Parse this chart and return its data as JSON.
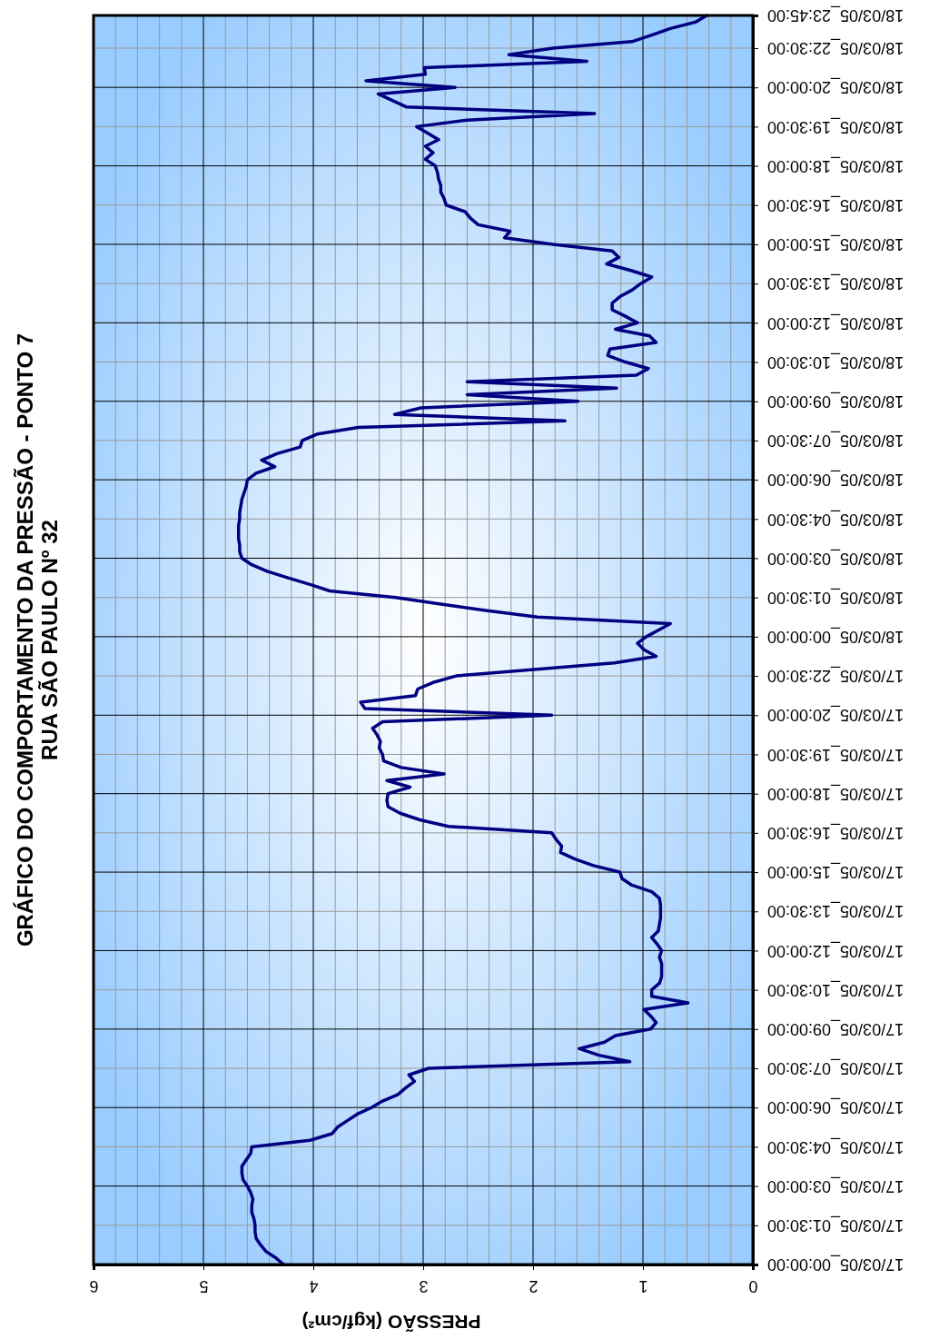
{
  "chart_data": {
    "type": "line",
    "orientation": "horizontal",
    "title": "GRÁFICO DO COMPORTAMENTO DA PRESSÃO - PONTO 7",
    "subtitle": "RUA SÃO PAULO Nº 32",
    "xlabel": "PRESSÃO (kgf/cm²)",
    "categories": [
      "18/03/05_23:45:00",
      null,
      null,
      null,
      null,
      "18/03/05_22:30:00",
      null,
      null,
      null,
      null,
      null,
      "18/03/05_20:00:00",
      null,
      null,
      null,
      null,
      null,
      "18/03/05_19:30:00",
      null,
      null,
      null,
      null,
      null,
      "18/03/05_18:00:00",
      null,
      null,
      null,
      null,
      null,
      "18/03/05_16:30:00",
      null,
      null,
      null,
      null,
      null,
      "18/03/05_15:00:00",
      null,
      null,
      null,
      null,
      null,
      "18/03/05_13:30:00",
      null,
      null,
      null,
      null,
      null,
      "18/03/05_12:00:00",
      null,
      null,
      null,
      null,
      null,
      "18/03/05_10:30:00",
      null,
      null,
      null,
      null,
      null,
      "18/03/05_09:00:00",
      null,
      null,
      null,
      null,
      null,
      "18/03/05_07:30:00",
      null,
      null,
      null,
      null,
      null,
      "18/03/05_06:00:00",
      null,
      null,
      null,
      null,
      null,
      "18/03/05_04:30:00",
      null,
      null,
      null,
      null,
      null,
      "18/03/05_03:00:00",
      null,
      null,
      null,
      null,
      null,
      "18/03/05_01:30:00",
      null,
      null,
      null,
      null,
      null,
      "18/03/05_00:00:00",
      null,
      null,
      null,
      null,
      null,
      "17/03/05_22:30:00",
      null,
      null,
      null,
      null,
      null,
      "17/03/05_20:00:00",
      null,
      null,
      null,
      null,
      null,
      "17/03/05_19:30:00",
      null,
      null,
      null,
      null,
      null,
      "17/03/05_18:00:00",
      null,
      null,
      null,
      null,
      null,
      "17/03/05_16:30:00",
      null,
      null,
      null,
      null,
      null,
      "17/03/05_15:00:00",
      null,
      null,
      null,
      null,
      null,
      "17/03/05_13:30:00",
      null,
      null,
      null,
      null,
      null,
      "17/03/05_12:00:00",
      null,
      null,
      null,
      null,
      null,
      "17/03/05_10:30:00",
      null,
      null,
      null,
      null,
      null,
      "17/03/05_09:00:00",
      null,
      null,
      null,
      null,
      null,
      "17/03/05_07:30:00",
      null,
      null,
      null,
      null,
      null,
      "17/03/05_06:00:00",
      null,
      null,
      null,
      null,
      null,
      "17/03/05_04:30:00",
      null,
      null,
      null,
      null,
      null,
      "17/03/05_03:00:00",
      null,
      null,
      null,
      null,
      null,
      "17/03/05_01:30:00",
      null,
      null,
      null,
      null,
      null,
      "17/03/05_00:00:00"
    ],
    "values": [
      0.42,
      0.52,
      0.75,
      0.92,
      1.1,
      1.82,
      2.22,
      1.51,
      2.99,
      2.98,
      3.52,
      2.71,
      3.41,
      3.28,
      3.15,
      1.44,
      2.6,
      3.06,
      2.96,
      2.86,
      2.98,
      2.91,
      2.98,
      2.89,
      2.87,
      2.86,
      2.84,
      2.84,
      2.81,
      2.79,
      2.62,
      2.57,
      2.5,
      2.21,
      2.26,
      1.82,
      1.28,
      1.22,
      1.33,
      1.11,
      0.92,
      1.02,
      1.1,
      1.21,
      1.28,
      1.28,
      1.16,
      1.05,
      1.25,
      0.94,
      0.88,
      1.3,
      1.32,
      1.16,
      0.95,
      1.06,
      2.6,
      1.24,
      2.6,
      1.59,
      3.02,
      3.26,
      1.71,
      3.59,
      3.96,
      4.1,
      4.12,
      4.33,
      4.47,
      4.35,
      4.52,
      4.6,
      4.61,
      4.63,
      4.65,
      4.66,
      4.67,
      4.67,
      4.68,
      4.68,
      4.68,
      4.67,
      4.67,
      4.65,
      4.56,
      4.42,
      4.23,
      4.03,
      3.85,
      3.25,
      2.84,
      2.43,
      1.96,
      0.75,
      0.86,
      0.97,
      1.05,
      0.99,
      0.88,
      1.26,
      1.99,
      2.7,
      2.91,
      3.05,
      3.07,
      3.57,
      3.53,
      1.83,
      3.37,
      3.46,
      3.42,
      3.39,
      3.4,
      3.37,
      3.36,
      3.2,
      2.81,
      3.33,
      3.12,
      3.32,
      3.33,
      3.32,
      3.21,
      3.03,
      2.77,
      1.83,
      1.79,
      1.74,
      1.75,
      1.62,
      1.45,
      1.21,
      1.19,
      1.1,
      0.92,
      0.85,
      0.84,
      0.84,
      0.84,
      0.85,
      0.86,
      0.92,
      0.87,
      0.83,
      0.85,
      0.83,
      0.83,
      0.83,
      0.85,
      0.92,
      0.92,
      0.59,
      0.99,
      0.93,
      0.88,
      0.93,
      1.25,
      1.35,
      1.58,
      1.4,
      1.12,
      2.95,
      3.13,
      3.08,
      3.16,
      3.23,
      3.37,
      3.47,
      3.6,
      3.69,
      3.78,
      3.83,
      4.03,
      4.56,
      4.57,
      4.61,
      4.65,
      4.65,
      4.64,
      4.6,
      4.57,
      4.55,
      4.56,
      4.56,
      4.54,
      4.53,
      4.53,
      4.52,
      4.48,
      4.43,
      4.34,
      4.27
    ],
    "color": "#000080",
    "xlim": [
      6,
      0
    ],
    "xticks": [
      6,
      5,
      4,
      3,
      2,
      1,
      0
    ],
    "grid": true
  }
}
